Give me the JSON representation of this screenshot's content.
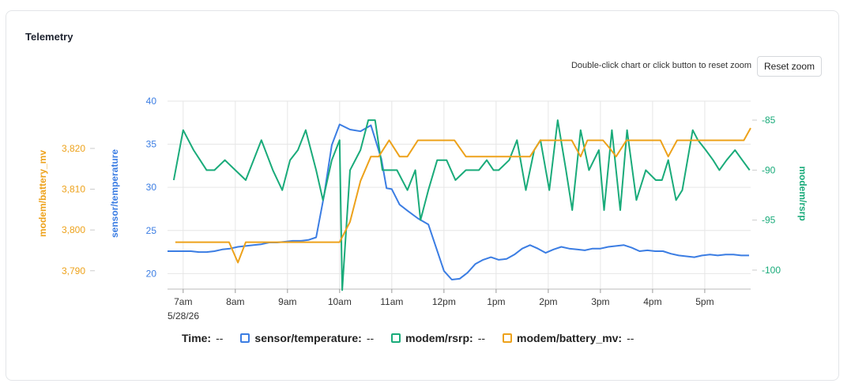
{
  "panel": {
    "title": "Telemetry"
  },
  "toolbar": {
    "hint": "Double-click chart or click button to reset zoom",
    "reset_label": "Reset zoom"
  },
  "legend": {
    "time_label": "Time:",
    "time_value": "--",
    "items": [
      {
        "label": "sensor/temperature:",
        "value": "--",
        "color": "#3b7de3"
      },
      {
        "label": "modem/rsrp:",
        "value": "--",
        "color": "#1aab7a"
      },
      {
        "label": "modem/battery_mv:",
        "value": "--",
        "color": "#eda21b"
      }
    ]
  },
  "chart_data": {
    "type": "line",
    "x_ticks": [
      {
        "t": 7,
        "label": "7am"
      },
      {
        "t": 8,
        "label": "8am"
      },
      {
        "t": 9,
        "label": "9am"
      },
      {
        "t": 10,
        "label": "10am"
      },
      {
        "t": 11,
        "label": "11am"
      },
      {
        "t": 12,
        "label": "12pm"
      },
      {
        "t": 13,
        "label": "1pm"
      },
      {
        "t": 14,
        "label": "2pm"
      },
      {
        "t": 15,
        "label": "3pm"
      },
      {
        "t": 16,
        "label": "4pm"
      },
      {
        "t": 17,
        "label": "5pm"
      }
    ],
    "date_label": "5/28/26",
    "xlim": [
      6.7,
      17.88
    ],
    "axes": {
      "temperature": {
        "label": "sensor/temperature",
        "color": "#3b7de3",
        "ylim": [
          18.2,
          40
        ],
        "ticks": [
          20,
          25,
          30,
          35,
          40
        ]
      },
      "battery": {
        "label": "modem/battery_mv",
        "color": "#eda21b",
        "ylim": [
          3785.5,
          3831.6
        ],
        "ticks": [
          3790,
          3800,
          3810,
          3820
        ],
        "tick_labels": [
          "3,790",
          "3,800",
          "3,810",
          "3,820"
        ]
      },
      "rsrp": {
        "label": "modem/rsrp",
        "color": "#1aab7a",
        "ylim": [
          -101.9,
          -83.1
        ],
        "ticks": [
          -85,
          -90,
          -95,
          -100
        ]
      }
    },
    "series": [
      {
        "name": "sensor/temperature",
        "axis": "temperature",
        "x": [
          6.7,
          6.85,
          7,
          7.15,
          7.3,
          7.45,
          7.6,
          7.75,
          7.9,
          8.05,
          8.2,
          8.35,
          8.5,
          8.65,
          8.8,
          8.95,
          9.1,
          9.25,
          9.4,
          9.55,
          9.7,
          9.85,
          10,
          10.2,
          10.4,
          10.6,
          10.8,
          10.9,
          11,
          11.15,
          11.3,
          11.5,
          11.7,
          11.85,
          12,
          12.15,
          12.3,
          12.45,
          12.6,
          12.75,
          12.9,
          13.05,
          13.2,
          13.35,
          13.5,
          13.65,
          13.8,
          13.95,
          14.1,
          14.25,
          14.4,
          14.55,
          14.7,
          14.85,
          15,
          15.15,
          15.3,
          15.45,
          15.6,
          15.75,
          15.9,
          16.05,
          16.2,
          16.35,
          16.5,
          16.65,
          16.8,
          16.95,
          17.1,
          17.25,
          17.4,
          17.55,
          17.7,
          17.85
        ],
        "values": [
          22.6,
          22.6,
          22.6,
          22.6,
          22.5,
          22.5,
          22.6,
          22.8,
          22.9,
          23.1,
          23.2,
          23.3,
          23.4,
          23.6,
          23.6,
          23.7,
          23.8,
          23.8,
          23.9,
          24.2,
          29,
          34.9,
          37.3,
          36.7,
          36.5,
          37.2,
          33.3,
          29.9,
          29.8,
          28,
          27.3,
          26.4,
          25.7,
          23,
          20.3,
          19.3,
          19.4,
          20.1,
          21.1,
          21.6,
          21.9,
          21.6,
          21.7,
          22.2,
          22.9,
          23.3,
          22.9,
          22.4,
          22.8,
          23.1,
          22.9,
          22.8,
          22.7,
          22.9,
          22.9,
          23.1,
          23.2,
          23.3,
          23,
          22.6,
          22.7,
          22.6,
          22.6,
          22.3,
          22.1,
          22,
          21.9,
          22.1,
          22.2,
          22.1,
          22.2,
          22.2,
          22.1,
          22.1
        ]
      },
      {
        "name": "modem/rsrp",
        "axis": "rsrp",
        "x": [
          6.82,
          7,
          7.2,
          7.45,
          7.6,
          7.8,
          8,
          8.2,
          8.35,
          8.5,
          8.72,
          8.9,
          9.05,
          9.2,
          9.35,
          9.55,
          9.68,
          9.85,
          10,
          10.05,
          10.2,
          10.4,
          10.55,
          10.68,
          10.82,
          10.95,
          11.1,
          11.3,
          11.45,
          11.55,
          11.7,
          11.87,
          12.05,
          12.22,
          12.42,
          12.55,
          12.67,
          12.82,
          12.95,
          13.05,
          13.25,
          13.4,
          13.57,
          13.73,
          13.85,
          14.02,
          14.18,
          14.34,
          14.46,
          14.62,
          14.78,
          14.97,
          15.07,
          15.22,
          15.38,
          15.51,
          15.69,
          15.87,
          16.06,
          16.18,
          16.3,
          16.45,
          16.57,
          16.77,
          16.87,
          17.02,
          17.16,
          17.28,
          17.42,
          17.58,
          17.72,
          17.86
        ],
        "values": [
          -91,
          -86,
          -88,
          -90,
          -90,
          -89,
          -90,
          -91,
          -89,
          -87,
          -90,
          -92,
          -89,
          -88,
          -86,
          -90,
          -93,
          -89,
          -87,
          -102,
          -90,
          -88,
          -85,
          -85,
          -90,
          -90,
          -90,
          -92,
          -90,
          -95,
          -92,
          -89,
          -89,
          -91,
          -90,
          -90,
          -90,
          -89,
          -90,
          -90,
          -89,
          -87,
          -92,
          -88,
          -87,
          -92,
          -85,
          -90,
          -94,
          -86,
          -90,
          -88,
          -94,
          -86,
          -94,
          -86,
          -93,
          -90,
          -91,
          -91,
          -89,
          -93,
          -92,
          -86,
          -87,
          -88,
          -89,
          -90,
          -89,
          -88,
          -89,
          -90
        ]
      },
      {
        "name": "modem/battery_mv",
        "axis": "battery",
        "x": [
          6.85,
          7.1,
          7.4,
          7.7,
          7.88,
          8.05,
          8.2,
          8.45,
          8.7,
          8.95,
          9.2,
          9.45,
          9.7,
          9.95,
          10,
          10.2,
          10.4,
          10.6,
          10.75,
          10.95,
          11.15,
          11.3,
          11.5,
          11.65,
          11.85,
          12,
          12.2,
          12.42,
          12.55,
          12.7,
          12.9,
          13.05,
          13.2,
          13.35,
          13.5,
          13.65,
          13.85,
          14.05,
          14.25,
          14.45,
          14.62,
          14.75,
          14.9,
          15.05,
          15.18,
          15.3,
          15.5,
          15.7,
          15.85,
          16,
          16.15,
          16.3,
          16.47,
          16.6,
          16.75,
          16.9,
          17.05,
          17.2,
          17.4,
          17.6,
          17.75,
          17.88
        ],
        "values": [
          3797,
          3797,
          3797,
          3797,
          3797,
          3792,
          3797,
          3797,
          3797,
          3797,
          3797,
          3797,
          3797,
          3797,
          3797,
          3802,
          3812,
          3818,
          3818,
          3822,
          3818,
          3818,
          3822,
          3822,
          3822,
          3822,
          3822,
          3818,
          3818,
          3818,
          3818,
          3818,
          3818,
          3818,
          3818,
          3818,
          3822,
          3822,
          3822,
          3822,
          3818,
          3822,
          3822,
          3822,
          3820,
          3818,
          3822,
          3822,
          3822,
          3822,
          3822,
          3818,
          3822,
          3822,
          3822,
          3822,
          3822,
          3822,
          3822,
          3822,
          3822,
          3825
        ]
      }
    ]
  }
}
